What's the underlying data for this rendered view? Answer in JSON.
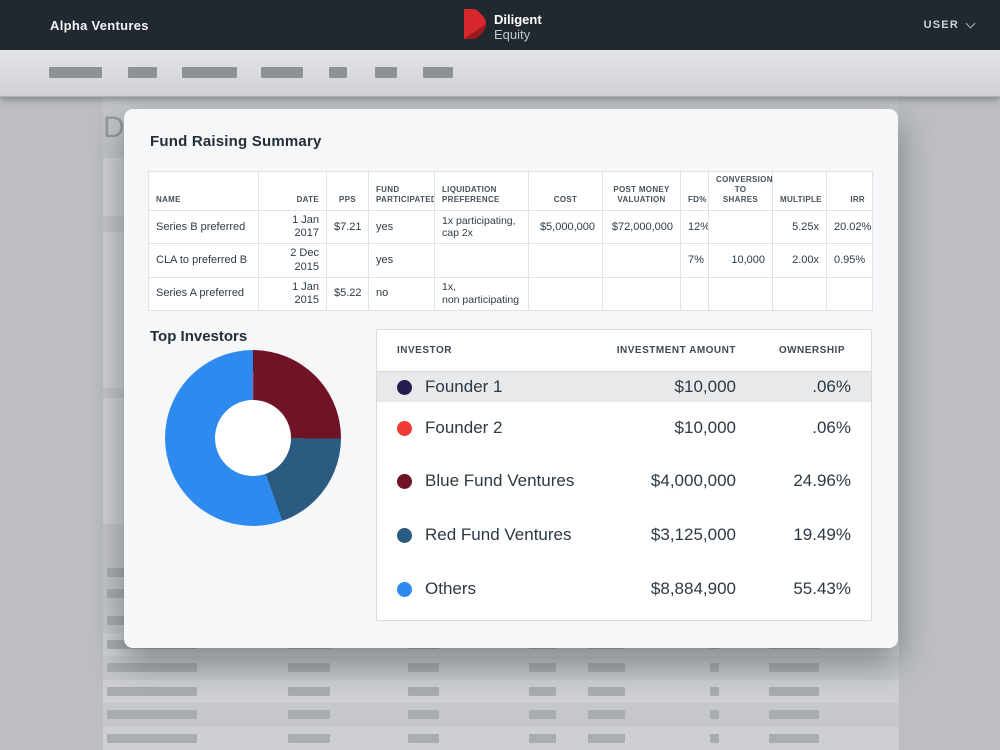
{
  "topbar": {
    "company": "Alpha Ventures",
    "logo": {
      "primary": "Diligent",
      "secondary": "Equity"
    },
    "user_label": "USER"
  },
  "background_page": {
    "heading": "D"
  },
  "dialog": {
    "title": "Fund Raising Summary",
    "fund_table": {
      "headers": [
        "NAME",
        "DATE",
        "PPS",
        "FUND PARTICIPATED",
        "LIQUIDATION PREFERENCE",
        "COST",
        "POST MONEY VALUATION",
        "FD%",
        "CONVERSION TO SHARES",
        "MULTIPLE",
        "IRR"
      ],
      "rows": [
        [
          "Series B preferred",
          "1 Jan 2017",
          "$7.21",
          "yes",
          "1x participating,\ncap 2x",
          "$5,000,000",
          "$72,000,000",
          "12%",
          "",
          "5.25x",
          "20.02%"
        ],
        [
          "CLA to preferred B",
          "2 Dec 2015",
          "",
          "yes",
          "",
          "",
          "",
          "7%",
          "10,000",
          "2.00x",
          "0.95%"
        ],
        [
          "Series A preferred",
          "1 Jan 2015",
          "$5.22",
          "no",
          "1x,\nnon participating",
          "",
          "",
          "",
          "",
          "",
          ""
        ]
      ]
    },
    "top_investors": {
      "title": "Top Investors",
      "table_headers": [
        "INVESTOR",
        "INVESTMENT AMOUNT",
        "OWNERSHIP"
      ],
      "investors": [
        {
          "name": "Founder 1",
          "amount": "$10,000",
          "ownership": ".06%",
          "color": "#241e50",
          "highlighted": true
        },
        {
          "name": "Founder 2",
          "amount": "$10,000",
          "ownership": ".06%",
          "color": "#ef3a35",
          "highlighted": false
        },
        {
          "name": "Blue Fund Ventures",
          "amount": "$4,000,000",
          "ownership": "24.96%",
          "color": "#701325",
          "highlighted": false
        },
        {
          "name": "Red Fund Ventures",
          "amount": "$3,125,000",
          "ownership": "19.49%",
          "color": "#2a5b80",
          "highlighted": false
        },
        {
          "name": "Others",
          "amount": "$8,884,900",
          "ownership": "55.43%",
          "color": "#2f8aef",
          "highlighted": false
        }
      ]
    }
  },
  "chart_data": {
    "type": "pie",
    "title": "Top Investors",
    "donut": true,
    "unit": "percent ownership",
    "labels": [
      "Founder 1",
      "Founder 2",
      "Blue Fund Ventures",
      "Red Fund Ventures",
      "Others"
    ],
    "values": [
      0.06,
      0.06,
      24.96,
      19.49,
      55.43
    ],
    "amounts": [
      "$10,000",
      "$10,000",
      "$4,000,000",
      "$3,125,000",
      "$8,884,900"
    ],
    "colors": [
      "#241e50",
      "#ef3a35",
      "#701325",
      "#2a5b80",
      "#2f8aef"
    ],
    "start_angle_deg": 0,
    "direction": "clockwise",
    "legend_position": "right-table"
  },
  "colors": {
    "topbar_bg": "#212830",
    "accent_red": "#cf2428",
    "dialog_bg": "#f6f7f8",
    "highlight_row": "#e8e9ea"
  }
}
